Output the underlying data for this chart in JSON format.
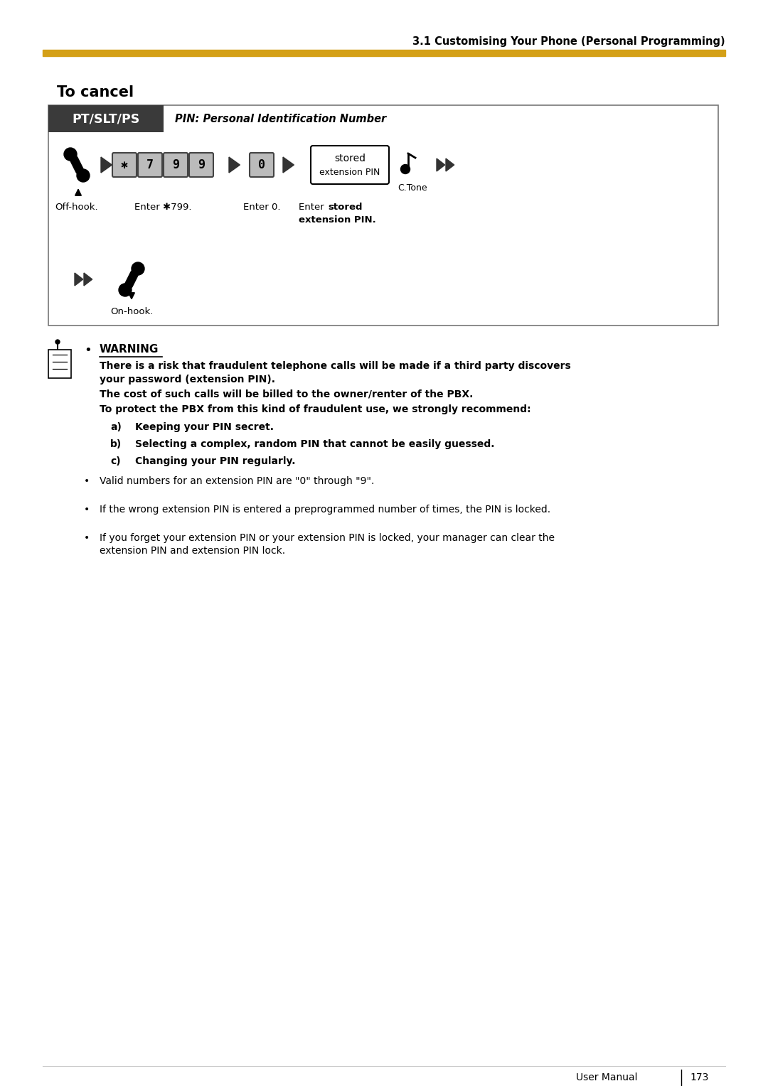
{
  "page_header": "3.1 Customising Your Phone (Personal Programming)",
  "header_line_color": "#D4A017",
  "section_title": "To cancel",
  "box_header_bg": "#3A3A3A",
  "box_header_text": "PT/SLT/PS",
  "box_pin_label": "PIN: Personal Identification Number",
  "box_border_color": "#888888",
  "keys_row1": [
    "✱",
    "7",
    "9",
    "9"
  ],
  "key_single": "0",
  "stored_line1": "stored",
  "stored_line2": "extension PIN",
  "ctone_label": "C.Tone",
  "label_offhook": "Off-hook.",
  "label_enter799": "Enter ✱799.",
  "label_enter0": "Enter 0.",
  "label_onhook": "On-hook.",
  "warning_title": "WARNING",
  "warn_p1a": "There is a risk that fraudulent telephone calls will be made if a third party discovers",
  "warn_p1b": "your password (extension PIN).",
  "warn_p2": "The cost of such calls will be billed to the owner/renter of the PBX.",
  "warn_p3": "To protect the PBX from this kind of fraudulent use, we strongly recommend:",
  "warn_abc": [
    [
      "a)",
      "Keeping your PIN secret."
    ],
    [
      "b)",
      "Selecting a complex, random PIN that cannot be easily guessed."
    ],
    [
      "c)",
      "Changing your PIN regularly."
    ]
  ],
  "bullets": [
    "Valid numbers for an extension PIN are \"0\" through \"9\".",
    "If the wrong extension PIN is entered a preprogrammed number of times, the PIN is locked.",
    [
      "If you forget your extension PIN or your extension PIN is locked, your manager can clear the",
      "extension PIN and extension PIN lock."
    ]
  ],
  "footer_text": "User Manual",
  "footer_num": "173",
  "bg": "#FFFFFF"
}
